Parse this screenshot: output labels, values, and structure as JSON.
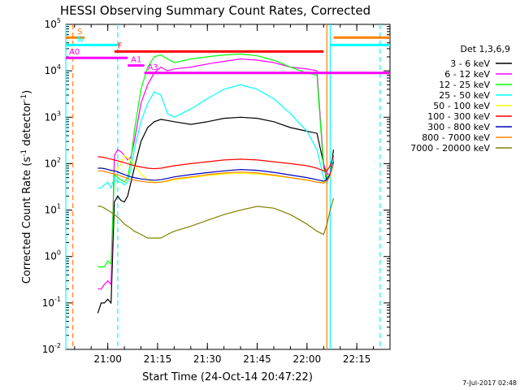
{
  "chart_data": {
    "type": "line",
    "title": "HESSI Observing Summary Count Rates, Corrected",
    "xlabel": "Start Time (24-Oct-14 20:47:22)",
    "ylabel_prefix": "Corrected Count Rate (s",
    "ylabel_exp1": "-1",
    "ylabel_mid": " detector",
    "ylabel_exp2": "-1",
    "ylabel_suffix": ")",
    "y_scale": "log",
    "x_range": [
      "20:47:22",
      "22:25:00"
    ],
    "y_range": [
      0.01,
      100000
    ],
    "x_ticks": [
      "21:00",
      "21:15",
      "21:30",
      "21:45",
      "22:00",
      "22:15"
    ],
    "y_ticks": [
      {
        "base": "10",
        "exp": "-2"
      },
      {
        "base": "10",
        "exp": "-1"
      },
      {
        "base": "10",
        "exp": "0"
      },
      {
        "base": "10",
        "exp": "1"
      },
      {
        "base": "10",
        "exp": "2"
      },
      {
        "base": "10",
        "exp": "3"
      },
      {
        "base": "10",
        "exp": "4"
      },
      {
        "base": "10",
        "exp": "5"
      }
    ],
    "legend_title": "Det 1,3,6,9",
    "legend_position": "right",
    "series": [
      {
        "name": "3 - 6 keV",
        "color": "#000000",
        "x": [
          "20:57",
          "20:58",
          "20:59",
          "21:00",
          "21:01",
          "21:02",
          "21:03",
          "21:04",
          "21:05",
          "21:06",
          "21:07",
          "21:08",
          "21:10",
          "21:12",
          "21:14",
          "21:16",
          "21:18",
          "21:20",
          "21:25",
          "21:30",
          "21:35",
          "21:40",
          "21:45",
          "21:50",
          "21:55",
          "22:00",
          "22:03",
          "22:05",
          "22:06",
          "22:07",
          "22:08"
        ],
        "y": [
          0.06,
          0.1,
          0.1,
          0.12,
          0.1,
          15,
          20,
          16,
          15,
          20,
          40,
          80,
          300,
          600,
          800,
          900,
          850,
          800,
          700,
          800,
          950,
          1000,
          950,
          800,
          600,
          500,
          450,
          100,
          40,
          60,
          200
        ]
      },
      {
        "name": "6 - 12 keV",
        "color": "#ff00ff",
        "x": [
          "20:57",
          "20:58",
          "20:59",
          "21:00",
          "21:01",
          "21:02",
          "21:03",
          "21:04",
          "21:05",
          "21:06",
          "21:07",
          "21:08",
          "21:10",
          "21:12",
          "21:14",
          "21:16",
          "21:18",
          "21:20",
          "21:25",
          "21:30",
          "21:35",
          "21:40",
          "21:45",
          "21:50",
          "21:55",
          "22:00",
          "22:03",
          "22:05",
          "22:06",
          "22:07",
          "22:08"
        ],
        "y": [
          0.2,
          0.2,
          0.25,
          0.3,
          0.25,
          150,
          200,
          180,
          150,
          120,
          140,
          300,
          2000,
          5000,
          9000,
          12000,
          10000,
          11000,
          12000,
          14000,
          16000,
          18000,
          17000,
          15000,
          12000,
          11000,
          10000,
          100,
          60,
          60,
          120
        ]
      },
      {
        "name": "12 - 25 keV",
        "color": "#00ff00",
        "x": [
          "20:57",
          "20:58",
          "20:59",
          "21:00",
          "21:01",
          "21:02",
          "21:03",
          "21:04",
          "21:05",
          "21:06",
          "21:07",
          "21:08",
          "21:10",
          "21:12",
          "21:14",
          "21:16",
          "21:18",
          "21:20",
          "21:25",
          "21:30",
          "21:35",
          "21:40",
          "21:45",
          "21:50",
          "21:55",
          "22:00",
          "22:03",
          "22:05",
          "22:06",
          "22:07",
          "22:08"
        ],
        "y": [
          0.6,
          0.6,
          0.6,
          0.8,
          0.7,
          60,
          50,
          45,
          40,
          50,
          120,
          500,
          4000,
          12000,
          20000,
          22000,
          18000,
          15000,
          18000,
          20000,
          22000,
          23000,
          21000,
          17000,
          12000,
          9000,
          8000,
          80,
          50,
          60,
          130
        ]
      },
      {
        "name": "25 - 50 keV",
        "color": "#00ffff",
        "x": [
          "20:57",
          "20:58",
          "20:59",
          "21:00",
          "21:01",
          "21:02",
          "21:03",
          "21:04",
          "21:05",
          "21:06",
          "21:07",
          "21:08",
          "21:10",
          "21:12",
          "21:14",
          "21:16",
          "21:18",
          "21:20",
          "21:25",
          "21:30",
          "21:35",
          "21:40",
          "21:45",
          "21:50",
          "21:55",
          "22:00",
          "22:03",
          "22:05",
          "22:06",
          "22:07",
          "22:08"
        ],
        "y": [
          30,
          30,
          35,
          40,
          30,
          50,
          40,
          40,
          35,
          40,
          80,
          200,
          800,
          2000,
          3500,
          3000,
          1200,
          1000,
          1500,
          2500,
          4000,
          5000,
          4000,
          2500,
          1200,
          500,
          200,
          50,
          40,
          60,
          150
        ]
      },
      {
        "name": "50 - 100 keV",
        "color": "#ffff00",
        "x": [
          "20:57",
          "20:58",
          "20:59",
          "21:00",
          "21:01",
          "21:02",
          "21:03",
          "21:04",
          "21:05",
          "21:06",
          "21:07",
          "21:08",
          "21:10",
          "21:12",
          "21:14",
          "21:16",
          "21:18",
          "21:20",
          "21:25",
          "21:30",
          "21:35",
          "21:40",
          "21:45",
          "21:50",
          "21:55",
          "22:00",
          "22:03",
          "22:05",
          "22:06",
          "22:07",
          "22:08"
        ],
        "y": [
          80,
          80,
          80,
          75,
          70,
          70,
          75,
          100,
          150,
          130,
          120,
          90,
          60,
          45,
          40,
          40,
          42,
          45,
          50,
          55,
          60,
          62,
          60,
          55,
          50,
          45,
          40,
          40,
          45,
          60,
          110
        ]
      },
      {
        "name": "100 - 300 keV",
        "color": "#ff0000",
        "x": [
          "20:57",
          "20:58",
          "20:59",
          "21:00",
          "21:01",
          "21:02",
          "21:03",
          "21:04",
          "21:05",
          "21:06",
          "21:07",
          "21:08",
          "21:10",
          "21:12",
          "21:14",
          "21:16",
          "21:18",
          "21:20",
          "21:25",
          "21:30",
          "21:35",
          "21:40",
          "21:45",
          "21:50",
          "21:55",
          "22:00",
          "22:03",
          "22:05",
          "22:06",
          "22:07",
          "22:08"
        ],
        "y": [
          140,
          140,
          135,
          130,
          125,
          120,
          115,
          110,
          105,
          100,
          95,
          90,
          85,
          80,
          78,
          80,
          85,
          90,
          100,
          110,
          120,
          125,
          120,
          110,
          100,
          90,
          80,
          70,
          70,
          90,
          150
        ]
      },
      {
        "name": "300 - 800 keV",
        "color": "#0000c0",
        "x": [
          "20:57",
          "20:58",
          "20:59",
          "21:00",
          "21:01",
          "21:02",
          "21:03",
          "21:04",
          "21:05",
          "21:06",
          "21:07",
          "21:08",
          "21:10",
          "21:12",
          "21:14",
          "21:16",
          "21:18",
          "21:20",
          "21:25",
          "21:30",
          "21:35",
          "21:40",
          "21:45",
          "21:50",
          "21:55",
          "22:00",
          "22:03",
          "22:05",
          "22:06",
          "22:07",
          "22:08"
        ],
        "y": [
          80,
          80,
          78,
          75,
          72,
          70,
          66,
          62,
          58,
          55,
          52,
          50,
          47,
          45,
          44,
          45,
          48,
          52,
          58,
          64,
          70,
          75,
          72,
          65,
          57,
          50,
          45,
          42,
          45,
          60,
          110
        ]
      },
      {
        "name": "800 - 7000 keV",
        "color": "#ff8000",
        "x": [
          "20:57",
          "20:58",
          "20:59",
          "21:00",
          "21:01",
          "21:02",
          "21:03",
          "21:04",
          "21:05",
          "21:06",
          "21:07",
          "21:08",
          "21:10",
          "21:12",
          "21:14",
          "21:16",
          "21:18",
          "21:20",
          "21:25",
          "21:30",
          "21:35",
          "21:40",
          "21:45",
          "21:50",
          "21:55",
          "22:00",
          "22:03",
          "22:05",
          "22:06",
          "22:07",
          "22:08"
        ],
        "y": [
          70,
          70,
          68,
          65,
          62,
          60,
          57,
          54,
          51,
          48,
          46,
          44,
          42,
          40,
          39,
          40,
          43,
          47,
          52,
          58,
          63,
          66,
          63,
          57,
          50,
          44,
          40,
          38,
          42,
          55,
          100
        ]
      },
      {
        "name": "7000 - 20000 keV",
        "color": "#808000",
        "x": [
          "20:57",
          "20:58",
          "20:59",
          "21:00",
          "21:01",
          "21:02",
          "21:03",
          "21:04",
          "21:05",
          "21:06",
          "21:07",
          "21:08",
          "21:10",
          "21:12",
          "21:14",
          "21:16",
          "21:18",
          "21:20",
          "21:25",
          "21:30",
          "21:35",
          "21:40",
          "21:45",
          "21:50",
          "21:55",
          "22:00",
          "22:03",
          "22:05",
          "22:06",
          "22:07",
          "22:08"
        ],
        "y": [
          12,
          12,
          11,
          10,
          9,
          8,
          7,
          6,
          5,
          4.5,
          4,
          3.5,
          3,
          2.5,
          2.5,
          2.5,
          3,
          3.5,
          4.5,
          6,
          8,
          10,
          12,
          11,
          8,
          5,
          3.5,
          3,
          5,
          10,
          18
        ]
      }
    ],
    "flag_bars": [
      {
        "label": "S",
        "color": "#ff8000",
        "segments": [
          [
            "20:47:22",
            "20:53"
          ],
          [
            "22:08",
            "22:25"
          ]
        ],
        "y": 52000
      },
      {
        "label": "N",
        "color": "#00ffff",
        "segments": [
          [
            "20:47:22",
            "21:03"
          ],
          [
            "22:07",
            "22:25"
          ]
        ],
        "y": 36000
      },
      {
        "label": "F",
        "color": "#ff0000",
        "segments": [
          [
            "21:02",
            "22:05"
          ]
        ],
        "y": 26000
      },
      {
        "label": "A0",
        "color": "#ff00ff",
        "segments": [
          [
            "20:47:22",
            "21:06"
          ]
        ],
        "y": 19000
      },
      {
        "label": "A1",
        "color": "#ff00ff",
        "segments": [
          [
            "21:06",
            "21:11"
          ]
        ],
        "y": 13000
      },
      {
        "label": "A3",
        "color": "#ff00ff",
        "segments": [
          [
            "21:11",
            "22:25"
          ]
        ],
        "y": 9000
      }
    ],
    "vlines": [
      {
        "x": "20:47:22",
        "color": "#00ffff",
        "dashed": false
      },
      {
        "x": "20:49:30",
        "color": "#ff8000",
        "dashed": true
      },
      {
        "x": "21:03",
        "color": "#00ffff",
        "dashed": true
      },
      {
        "x": "22:06",
        "color": "#ff8000",
        "dashed": false
      },
      {
        "x": "22:07",
        "color": "#00ffff",
        "dashed": false
      },
      {
        "x": "22:22",
        "color": "#00ffff",
        "dashed": true
      }
    ]
  },
  "footer_timestamp": "7-Jul-2017 02:48"
}
